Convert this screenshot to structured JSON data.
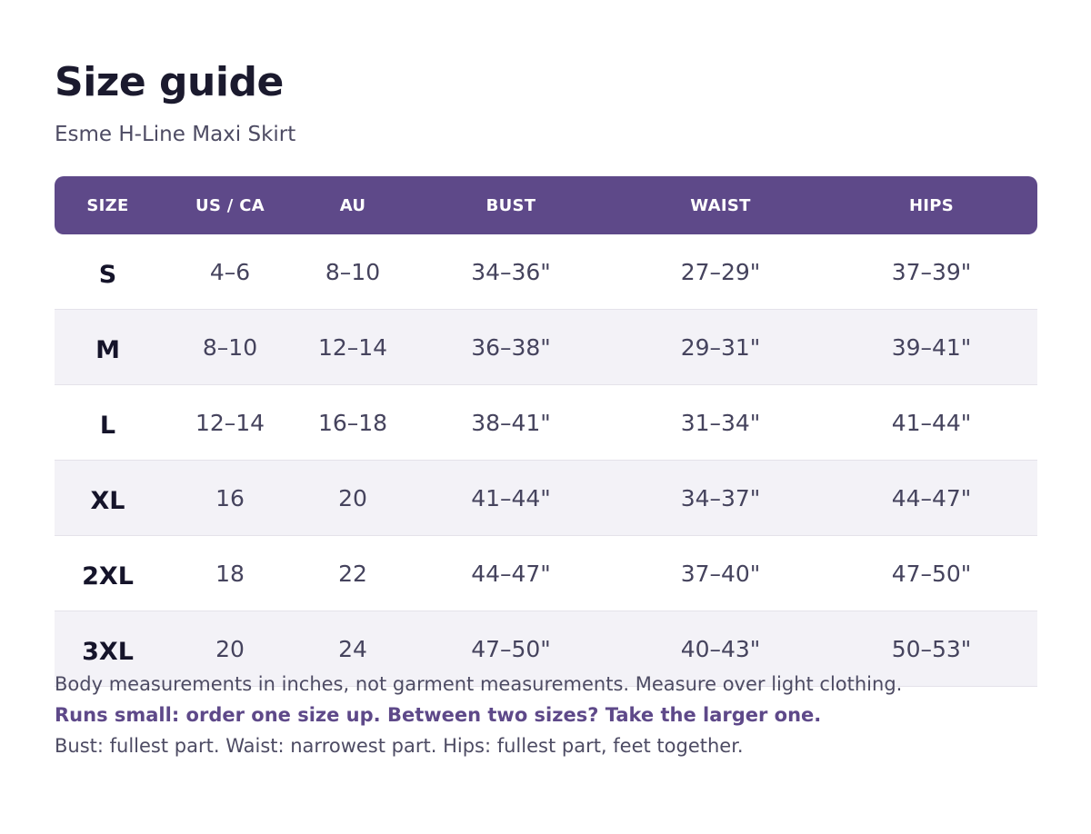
{
  "title": "Size guide",
  "subtitle": "Esme H-Line Maxi Skirt",
  "colors": {
    "accent": "#5e4989",
    "row_shade": "#f3f2f7",
    "text_dark": "#1b1a2e"
  },
  "table": {
    "headers": [
      "SIZE",
      "US / CA",
      "AU",
      "BUST",
      "WAIST",
      "HIPS"
    ],
    "rows": [
      [
        "S",
        "4–6",
        "8–10",
        "34–36\"",
        "27–29\"",
        "37–39\""
      ],
      [
        "M",
        "8–10",
        "12–14",
        "36–38\"",
        "29–31\"",
        "39–41\""
      ],
      [
        "L",
        "12–14",
        "16–18",
        "38–41\"",
        "31–34\"",
        "41–44\""
      ],
      [
        "XL",
        "16",
        "20",
        "41–44\"",
        "34–37\"",
        "44–47\""
      ],
      [
        "2XL",
        "18",
        "22",
        "44–47\"",
        "37–40\"",
        "47–50\""
      ],
      [
        "3XL",
        "20",
        "24",
        "47–50\"",
        "40–43\"",
        "50–53\""
      ]
    ]
  },
  "notes": {
    "measurement_note": "Body measurements in inches, not garment measurements. Measure over light clothing.",
    "fit_note": "Runs small: order one size up. Between two sizes? Take the larger one.",
    "how_to_measure": "Bust: fullest part.  Waist: narrowest part.  Hips: fullest part, feet together."
  }
}
